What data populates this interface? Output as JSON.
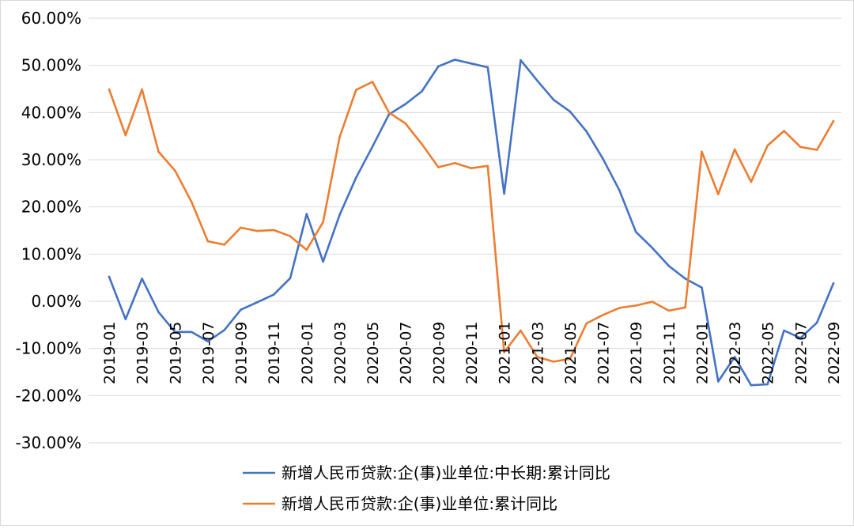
{
  "chart_data": {
    "type": "line",
    "title": "",
    "xlabel": "",
    "ylabel": "",
    "ylim": [
      -0.3,
      0.6
    ],
    "yticks": [
      "60.00%",
      "50.00%",
      "40.00%",
      "30.00%",
      "20.00%",
      "10.00%",
      "0.00%",
      "-10.00%",
      "-20.00%",
      "-30.00%"
    ],
    "ytick_values": [
      0.6,
      0.5,
      0.4,
      0.3,
      0.2,
      0.1,
      0.0,
      -0.1,
      -0.2,
      -0.3
    ],
    "grid": true,
    "legend_position": "bottom",
    "x": [
      "2019-01",
      "2019-02",
      "2019-03",
      "2019-04",
      "2019-05",
      "2019-06",
      "2019-07",
      "2019-08",
      "2019-09",
      "2019-10",
      "2019-11",
      "2019-12",
      "2020-01",
      "2020-02",
      "2020-03",
      "2020-04",
      "2020-05",
      "2020-06",
      "2020-07",
      "2020-08",
      "2020-09",
      "2020-10",
      "2020-11",
      "2020-12",
      "2021-01",
      "2021-02",
      "2021-03",
      "2021-04",
      "2021-05",
      "2021-06",
      "2021-07",
      "2021-08",
      "2021-09",
      "2021-10",
      "2021-11",
      "2021-12",
      "2022-01",
      "2022-02",
      "2022-03",
      "2022-04",
      "2022-05",
      "2022-06",
      "2022-07",
      "2022-08",
      "2022-09"
    ],
    "xtick_labels": [
      "2019-01",
      "2019-03",
      "2019-05",
      "2019-07",
      "2019-09",
      "2019-11",
      "2020-01",
      "2020-03",
      "2020-05",
      "2020-07",
      "2020-09",
      "2020-11",
      "2021-01",
      "2021-03",
      "2021-05",
      "2021-07",
      "2021-09",
      "2021-11",
      "2022-01",
      "2022-03",
      "2022-05",
      "2022-07",
      "2022-09"
    ],
    "series": [
      {
        "name": "新增人民币贷款:企(事)业单位:中长期:累计同比",
        "color": "#4472C4",
        "values": [
          0.052,
          -0.038,
          0.048,
          -0.023,
          -0.065,
          -0.065,
          -0.085,
          -0.061,
          -0.018,
          -0.002,
          0.014,
          0.049,
          0.185,
          0.084,
          0.183,
          0.262,
          0.328,
          0.396,
          0.418,
          0.445,
          0.498,
          0.512,
          0.504,
          0.496,
          0.228,
          0.511,
          0.468,
          0.427,
          0.402,
          0.36,
          0.302,
          0.235,
          0.147,
          0.113,
          0.075,
          0.048,
          0.029,
          -0.17,
          -0.118,
          -0.178,
          -0.176,
          -0.062,
          -0.078,
          -0.045,
          0.038
        ]
      },
      {
        "name": "新增人民币贷款:企(事)业单位:累计同比",
        "color": "#ED7D31",
        "values": [
          0.449,
          0.352,
          0.449,
          0.317,
          0.277,
          0.211,
          0.127,
          0.12,
          0.156,
          0.149,
          0.151,
          0.138,
          0.109,
          0.168,
          0.348,
          0.448,
          0.465,
          0.4,
          0.377,
          0.333,
          0.284,
          0.293,
          0.282,
          0.287,
          -0.108,
          -0.062,
          -0.118,
          -0.128,
          -0.122,
          -0.047,
          -0.029,
          -0.014,
          -0.009,
          -0.001,
          -0.02,
          -0.013,
          0.317,
          0.227,
          0.322,
          0.253,
          0.33,
          0.361,
          0.327,
          0.321,
          0.382
        ]
      }
    ]
  }
}
